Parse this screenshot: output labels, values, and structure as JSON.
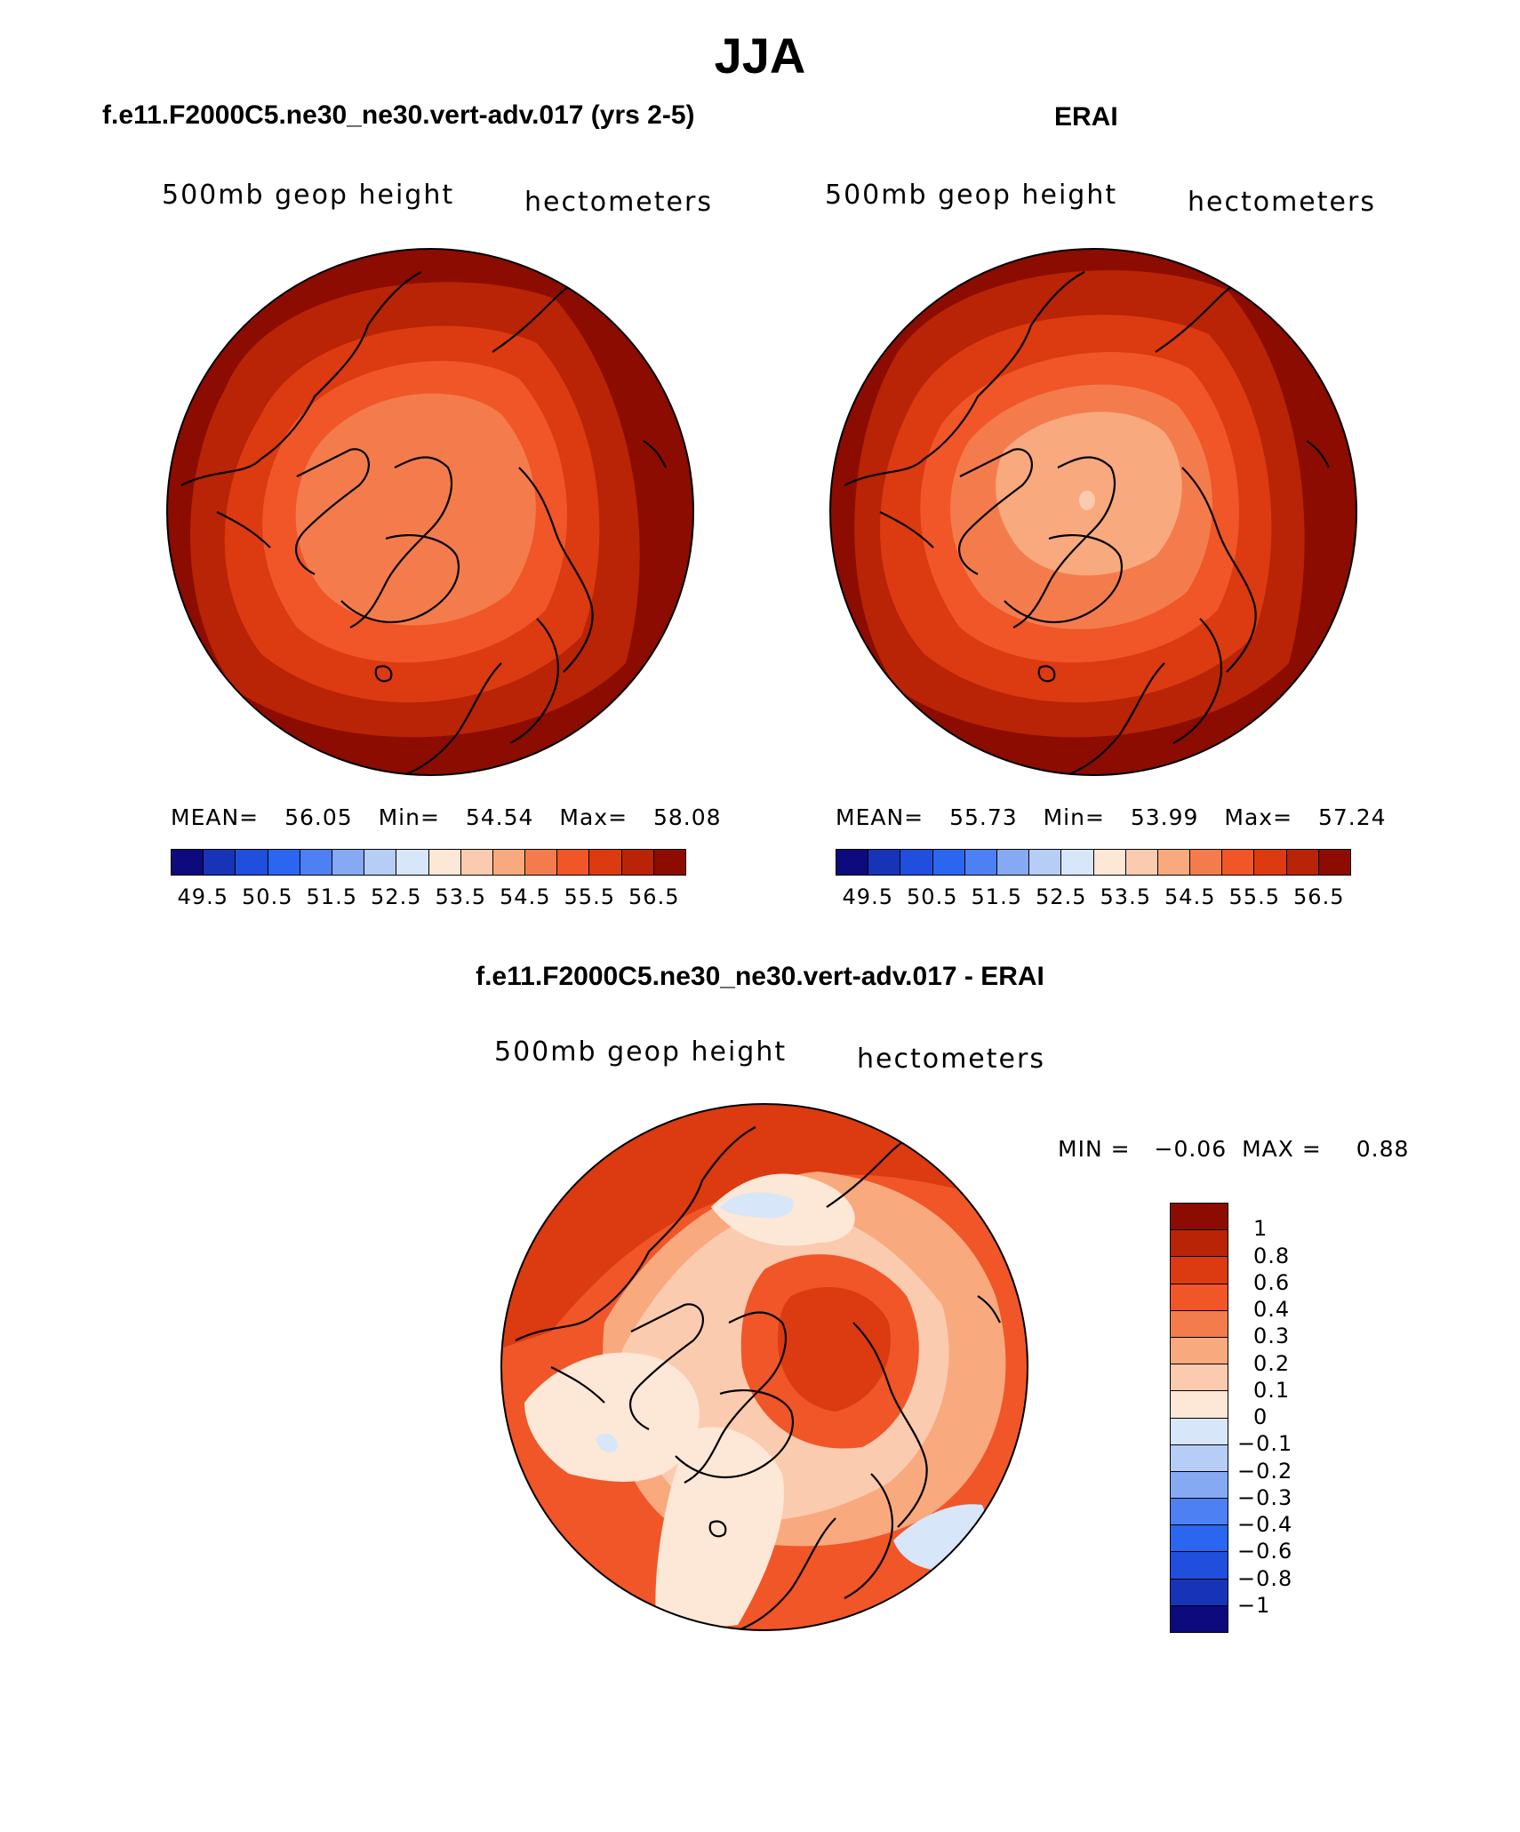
{
  "title": "JJA",
  "palette_abs": [
    "#0c0a7c",
    "#1734b8",
    "#1f4fdc",
    "#2a66f0",
    "#4d80f2",
    "#86a9f4",
    "#b6cdf6",
    "#d7e6f8",
    "#fde7d6",
    "#fbcbb0",
    "#f9a97e",
    "#f47c4c",
    "#f05628",
    "#dc3a10",
    "#b82405",
    "#8c0c01"
  ],
  "palette_diff": [
    "#8c0c01",
    "#b82405",
    "#dc3a10",
    "#f05628",
    "#f47c4c",
    "#f9a97e",
    "#fbcbb0",
    "#fde7d6",
    "#d7e6f8",
    "#b6cdf6",
    "#86a9f4",
    "#4d80f2",
    "#2a66f0",
    "#1f4fdc",
    "#1734b8",
    "#0c0a7c"
  ],
  "panels": {
    "model": {
      "title": "f.e11.F2000C5.ne30_ne30.vert-adv.017 (yrs 2-5)",
      "variable": "500mb  geop  height",
      "units": "hectometers",
      "mean_label": "MEAN=",
      "mean": "56.05",
      "min_label": "Min=",
      "min": "54.54",
      "max_label": "Max=",
      "max": "58.08",
      "ticks": [
        "49.5",
        "50.5",
        "51.5",
        "52.5",
        "53.5",
        "54.5",
        "55.5",
        "56.5"
      ]
    },
    "obs": {
      "title": "ERAI",
      "variable": "500mb  geop  height",
      "units": "hectometers",
      "mean_label": "MEAN=",
      "mean": "55.73",
      "min_label": "Min=",
      "min": "53.99",
      "max_label": "Max=",
      "max": "57.24",
      "ticks": [
        "49.5",
        "50.5",
        "51.5",
        "52.5",
        "53.5",
        "54.5",
        "55.5",
        "56.5"
      ]
    },
    "diff": {
      "title": "f.e11.F2000C5.ne30_ne30.vert-adv.017 - ERAI",
      "variable": "500mb  geop  height",
      "units": "hectometers",
      "min_label": "MIN =",
      "min": "−0.06",
      "max_label": "MAX =",
      "max": "0.88",
      "ticks": [
        "1",
        "0.8",
        "0.6",
        "0.4",
        "0.3",
        "0.2",
        "0.1",
        "0",
        "−0.1",
        "−0.2",
        "−0.3",
        "−0.4",
        "−0.6",
        "−0.8",
        "−1"
      ]
    }
  }
}
